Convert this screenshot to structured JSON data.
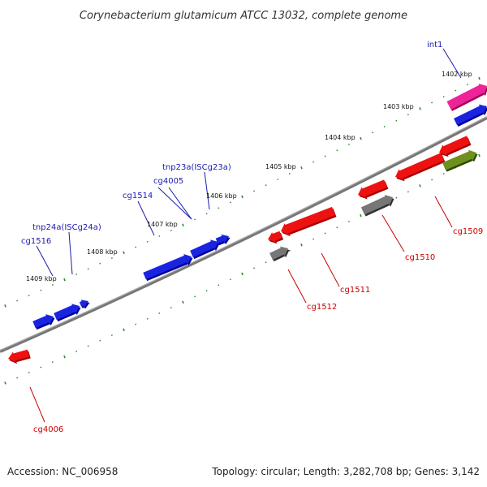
{
  "title": "Corynebacterium glutamicum ATCC 13032, complete genome",
  "footer": {
    "accession": "Accession: NC_006958",
    "topology": "Topology: circular; Length: 3,282,708 bp; Genes: 3,142"
  },
  "colors": {
    "backbone": "#777777",
    "tick": "#2e8b2e",
    "forward_label": "#1a1ab0",
    "reverse_label": "#cc0000",
    "blue": "#1a24e0",
    "red": "#ee1111",
    "magenta": "#ee2299",
    "gray": "#777777",
    "olive": "#6f8f1f"
  },
  "kbp_labels": [
    "1402 kbp",
    "1403 kbp",
    "1404 kbp",
    "1405 kbp",
    "1406 kbp",
    "1407 kbp",
    "1408 kbp",
    "1409 kbp"
  ],
  "forward_gene_labels": [
    "int1",
    "tnp23a(ISCg23a)",
    "cg4005",
    "cg1514",
    "tnp24a(ISCg24a)",
    "cg1516"
  ],
  "reverse_gene_labels": [
    "cg1509",
    "cg1510",
    "cg1511",
    "cg1512",
    "cg4006"
  ]
}
